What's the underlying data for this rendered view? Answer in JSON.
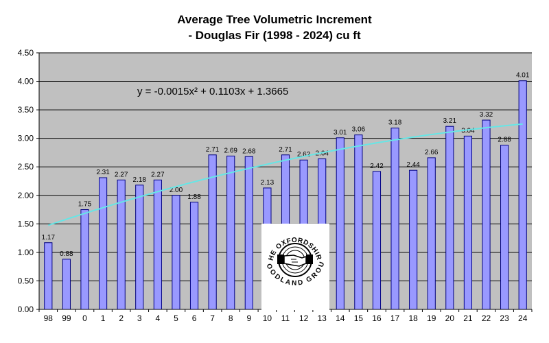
{
  "chart_data": {
    "type": "bar",
    "title_line1": "Average Tree Volumetric Increment",
    "title_line2": "- Douglas Fir (1998 - 2024) cu ft",
    "categories": [
      "98",
      "99",
      "0",
      "1",
      "2",
      "3",
      "4",
      "5",
      "6",
      "7",
      "8",
      "9",
      "10",
      "11",
      "12",
      "13",
      "14",
      "15",
      "16",
      "17",
      "18",
      "19",
      "20",
      "21",
      "22",
      "23",
      "24"
    ],
    "values": [
      1.17,
      0.88,
      1.75,
      2.31,
      2.27,
      2.18,
      2.27,
      2.0,
      1.88,
      2.71,
      2.69,
      2.68,
      2.13,
      2.71,
      2.62,
      2.64,
      3.01,
      3.06,
      2.42,
      3.18,
      2.44,
      2.66,
      3.21,
      3.04,
      3.32,
      2.88,
      4.01
    ],
    "value_labels": [
      "1.17",
      "0.88",
      "1.75",
      "2.31",
      "2.27",
      "2.18",
      "2.27",
      "2.00",
      "1.88",
      "2.71",
      "2.69",
      "2.68",
      "2.13",
      "2.71",
      "2.62",
      "2.64",
      "3.01",
      "3.06",
      "2.42",
      "3.18",
      "2.44",
      "2.66",
      "3.21",
      "3.04",
      "3.32",
      "2.88",
      "4.01"
    ],
    "ylim": [
      0,
      4.5
    ],
    "yticks": [
      "0.00",
      "0.50",
      "1.00",
      "1.50",
      "2.00",
      "2.50",
      "3.00",
      "3.50",
      "4.00",
      "4.50"
    ],
    "ytick_values": [
      0,
      0.5,
      1,
      1.5,
      2,
      2.5,
      3,
      3.5,
      4,
      4.5
    ],
    "trendline": {
      "equation": "y = -0.0015x² + 0.1103x + 1.3665",
      "a": -0.0015,
      "b": 0.1103,
      "c": 1.3665
    },
    "grid": true,
    "colors": {
      "plot_bg": "#c0c0c0",
      "bar_fill": "#9999ff",
      "bar_stroke": "#000080",
      "trend": "#66e6e6",
      "grid": "#000000"
    }
  },
  "logo": {
    "text_top": "THE OXFORDSHIRE",
    "text_bottom": "WOODLAND GROUP",
    "icon": "handshake-icon"
  }
}
